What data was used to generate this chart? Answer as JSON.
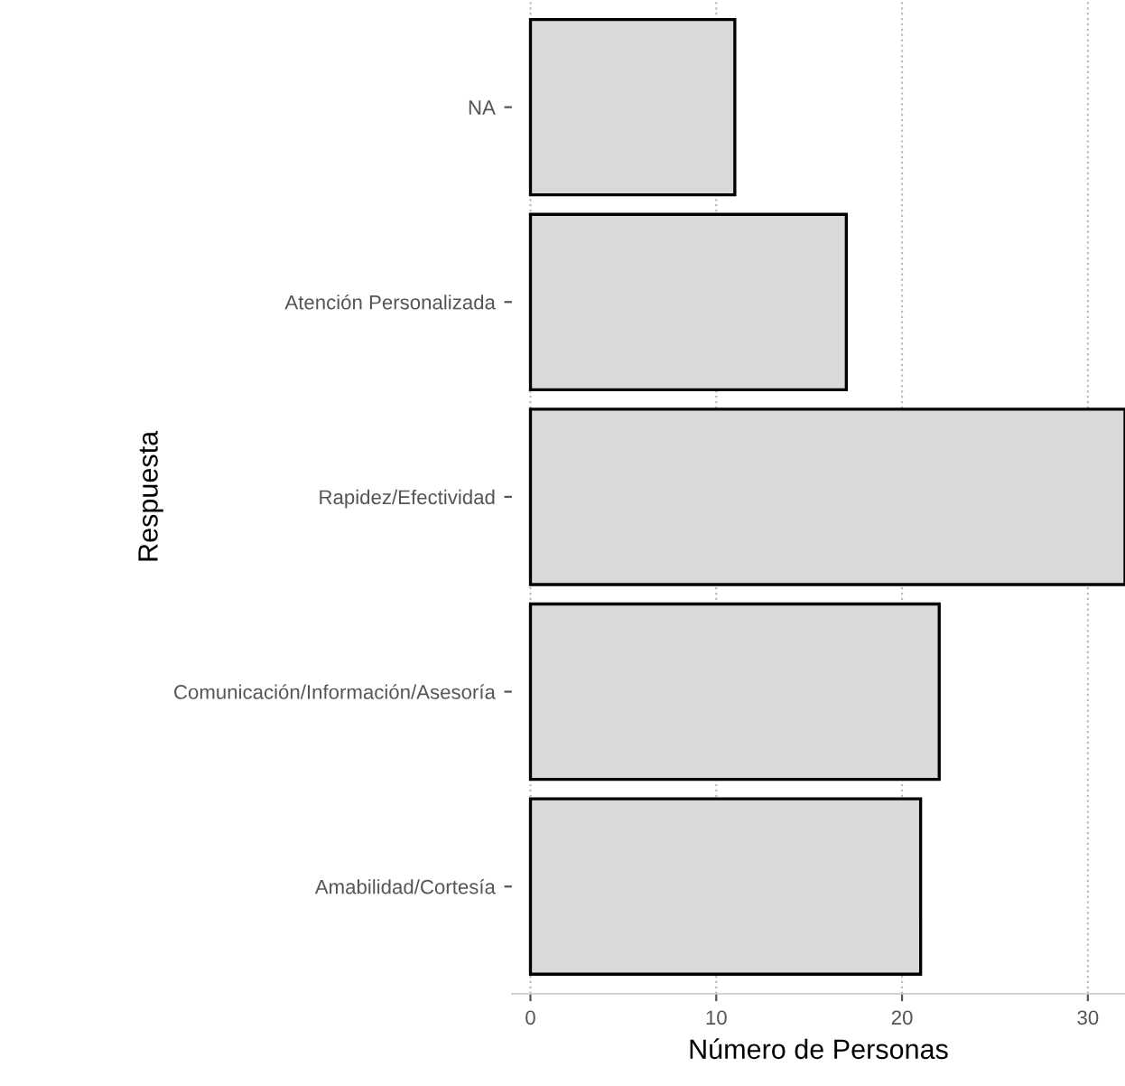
{
  "chart_data": {
    "type": "bar",
    "orientation": "horizontal",
    "categories": [
      "NA",
      "Atención Personalizada",
      "Rapidez/Efectividad",
      "Comunicación/Información/Asesoría",
      "Amabilidad/Cortesía"
    ],
    "values": [
      11,
      17,
      32,
      22,
      21
    ],
    "color": "#d9d9d9",
    "xlabel": "Número de Personas",
    "ylabel": "Respuesta",
    "xlim": [
      -1,
      32
    ],
    "xticks": [
      0,
      10,
      20,
      30
    ],
    "grid": "x"
  }
}
